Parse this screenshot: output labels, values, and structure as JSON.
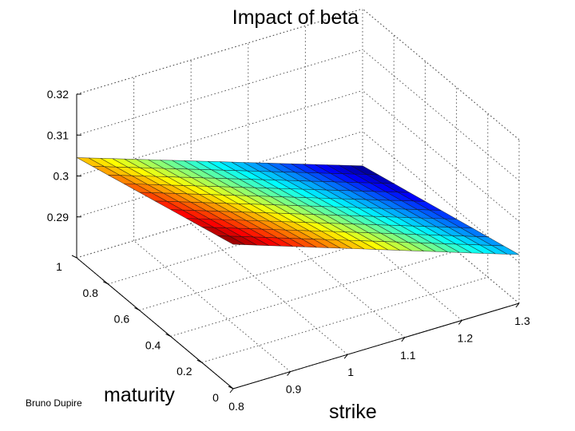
{
  "chart_data": {
    "type": "surface",
    "title": "Impact of beta",
    "xlabel": "strike",
    "ylabel": "maturity",
    "zlabel": "",
    "x_ticks": [
      "0.8",
      "0.9",
      "1",
      "1.1",
      "1.2",
      "1.3"
    ],
    "y_ticks": [
      "0",
      "0.2",
      "0.4",
      "0.6",
      "0.8",
      "1"
    ],
    "z_ticks": [
      "0.29",
      "0.3",
      "0.31",
      "0.32"
    ],
    "xlim": [
      0.8,
      1.3
    ],
    "ylim": [
      0,
      1
    ],
    "zlim": [
      0.28,
      0.32
    ],
    "grid": true,
    "colormap": "jet",
    "surface": {
      "strike": [
        0.8,
        1.3
      ],
      "maturity": [
        0,
        1
      ],
      "values": [
        [
          0.3153,
          0.3045
        ],
        [
          0.2919,
          0.2816
        ]
      ]
    }
  },
  "credit": "Bruno Dupire"
}
